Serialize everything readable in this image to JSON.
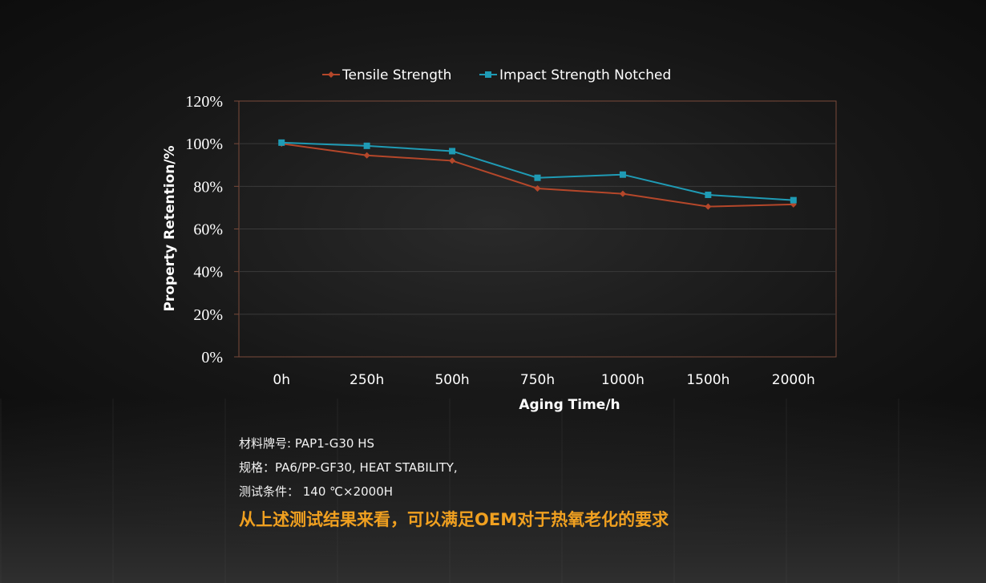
{
  "chart_data": {
    "type": "line",
    "categories": [
      "0h",
      "250h",
      "500h",
      "750h",
      "1000h",
      "1500h",
      "2000h"
    ],
    "series": [
      {
        "name": "Tensile Strength",
        "values": [
          100,
          94.5,
          92,
          79,
          76.5,
          70.5,
          71.5
        ],
        "color": "#b5472a",
        "marker": "diamond"
      },
      {
        "name": "Impact Strength Notched",
        "values": [
          100.5,
          99,
          96.5,
          84,
          85.5,
          76,
          73.5
        ],
        "color": "#1f9bb5",
        "marker": "square"
      }
    ],
    "xlabel": "Aging Time/h",
    "ylabel": "Property Retention/%",
    "ylim": [
      0,
      120
    ],
    "yticks": [
      "0%",
      "20%",
      "40%",
      "60%",
      "80%",
      "100%",
      "120%"
    ],
    "grid": true,
    "legend": "top"
  },
  "notes": {
    "grade": "材料牌号: PAP1-G30 HS",
    "spec": "规格：PA6/PP-GF30, HEAT STABILITY,",
    "test": "测试条件：  140 ℃×2000H"
  },
  "conclusion": "从上述测试结果来看，可以满足OEM对于热氧老化的要求",
  "colors": {
    "plot_border": "#7a4a3a",
    "grid": "#3a3a3a",
    "conclusion": "#f0a020",
    "text": "#ffffff"
  }
}
